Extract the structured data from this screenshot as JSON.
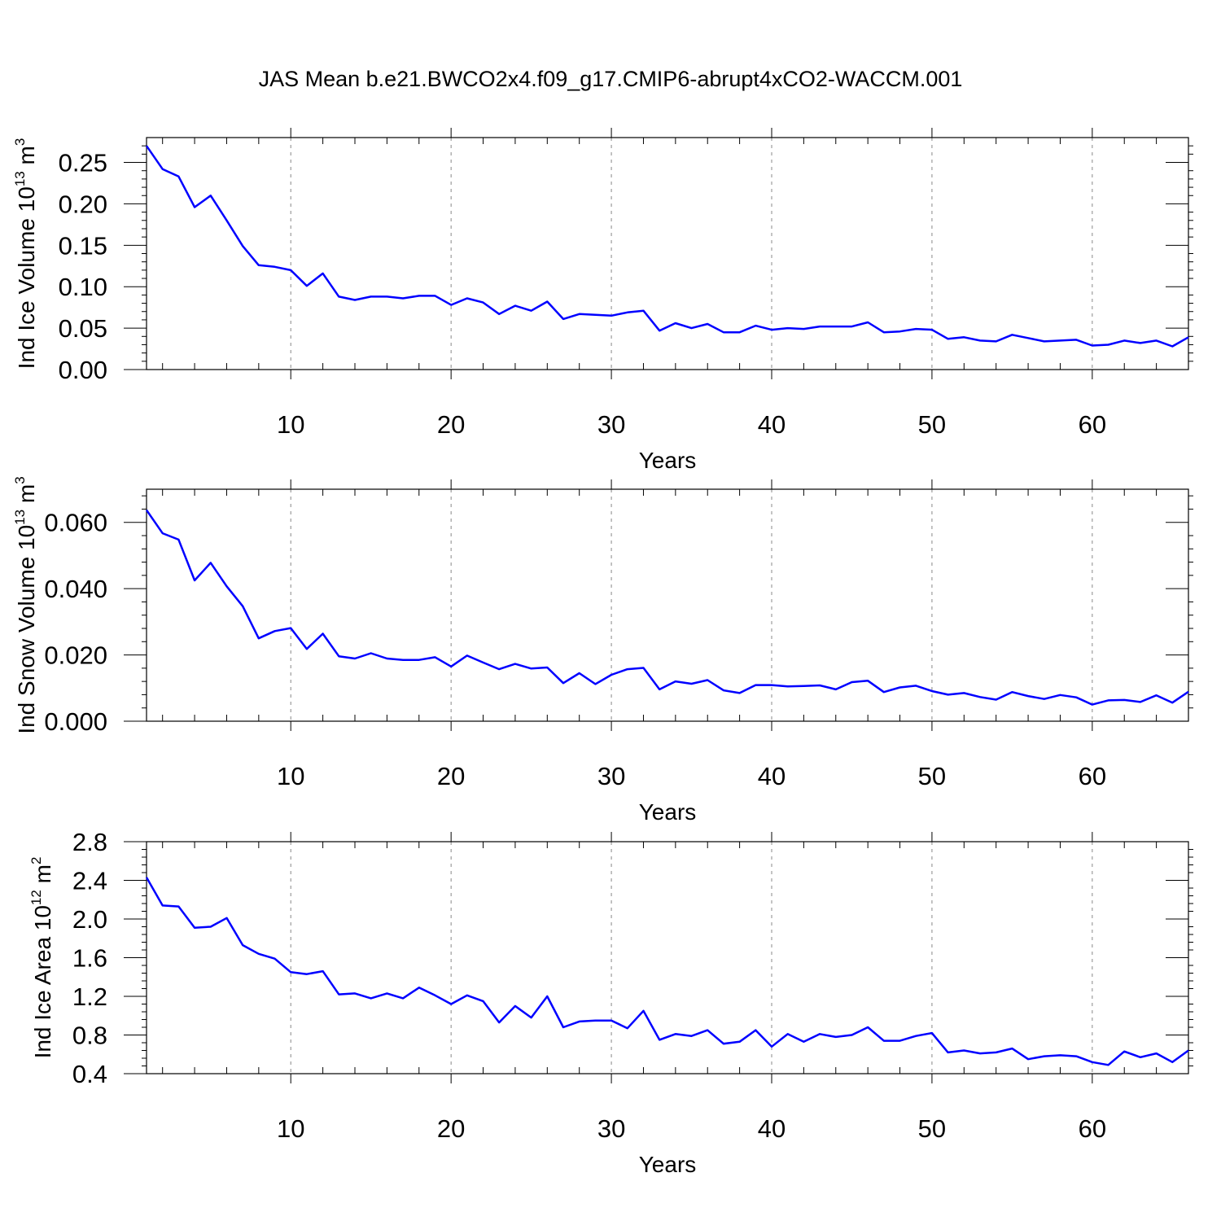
{
  "figure": {
    "title": "JAS Mean b.e21.BWCO2x4.f09_g17.CMIP6-abrupt4xCO2-WACCM.001"
  },
  "colors": {
    "series": "#0000ff",
    "axis": "#000000",
    "grid": "#888888"
  },
  "chart_data": [
    {
      "type": "line",
      "xlabel": "Years",
      "ylabel_main": "Ind Ice Volume 10",
      "ylabel_exp": "13",
      "ylabel_unit": " m",
      "ylabel_unit_exp": "3",
      "xlim": [
        1,
        66
      ],
      "ylim": [
        0,
        0.28
      ],
      "xticks": [
        10,
        20,
        30,
        40,
        50,
        60
      ],
      "xtick_labels": [
        "10",
        "20",
        "30",
        "40",
        "50",
        "60"
      ],
      "yticks": [
        0,
        0.05,
        0.1,
        0.15,
        0.2,
        0.25
      ],
      "ytick_labels": [
        "0.00",
        "0.05",
        "0.10",
        "0.15",
        "0.20",
        "0.25"
      ],
      "yminor_step": 0.01,
      "grid": "vertical dashed at major x ticks",
      "x": [
        1,
        2,
        3,
        4,
        5,
        6,
        7,
        8,
        9,
        10,
        11,
        12,
        13,
        14,
        15,
        16,
        17,
        18,
        19,
        20,
        21,
        22,
        23,
        24,
        25,
        26,
        27,
        28,
        29,
        30,
        31,
        32,
        33,
        34,
        35,
        36,
        37,
        38,
        39,
        40,
        41,
        42,
        43,
        44,
        45,
        46,
        47,
        48,
        49,
        50,
        51,
        52,
        53,
        54,
        55,
        56,
        57,
        58,
        59,
        60,
        61,
        62,
        63,
        64,
        65,
        66
      ],
      "values": [
        0.27,
        0.242,
        0.233,
        0.196,
        0.21,
        0.18,
        0.149,
        0.126,
        0.124,
        0.12,
        0.101,
        0.116,
        0.088,
        0.084,
        0.088,
        0.088,
        0.086,
        0.089,
        0.089,
        0.078,
        0.086,
        0.081,
        0.067,
        0.077,
        0.071,
        0.082,
        0.061,
        0.067,
        0.066,
        0.065,
        0.069,
        0.071,
        0.047,
        0.056,
        0.05,
        0.055,
        0.045,
        0.045,
        0.053,
        0.048,
        0.05,
        0.049,
        0.052,
        0.052,
        0.052,
        0.057,
        0.045,
        0.046,
        0.049,
        0.048,
        0.037,
        0.039,
        0.035,
        0.034,
        0.042,
        0.038,
        0.034,
        0.035,
        0.036,
        0.029,
        0.03,
        0.035,
        0.032,
        0.035,
        0.028,
        0.039
      ]
    },
    {
      "type": "line",
      "xlabel": "Years",
      "ylabel_main": "Ind Snow Volume 10",
      "ylabel_exp": "13",
      "ylabel_unit": " m",
      "ylabel_unit_exp": "3",
      "xlim": [
        1,
        66
      ],
      "ylim": [
        0,
        0.07
      ],
      "xticks": [
        10,
        20,
        30,
        40,
        50,
        60
      ],
      "xtick_labels": [
        "10",
        "20",
        "30",
        "40",
        "50",
        "60"
      ],
      "yticks": [
        0,
        0.02,
        0.04,
        0.06
      ],
      "ytick_labels": [
        "0.000",
        "0.020",
        "0.040",
        "0.060"
      ],
      "yminor_step": 0.004,
      "grid": "vertical dashed at major x ticks",
      "x": [
        1,
        2,
        3,
        4,
        5,
        6,
        7,
        8,
        9,
        10,
        11,
        12,
        13,
        14,
        15,
        16,
        17,
        18,
        19,
        20,
        21,
        22,
        23,
        24,
        25,
        26,
        27,
        28,
        29,
        30,
        31,
        32,
        33,
        34,
        35,
        36,
        37,
        38,
        39,
        40,
        41,
        42,
        43,
        44,
        45,
        46,
        47,
        48,
        49,
        50,
        51,
        52,
        53,
        54,
        55,
        56,
        57,
        58,
        59,
        60,
        61,
        62,
        63,
        64,
        65,
        66
      ],
      "values": [
        0.0637,
        0.0567,
        0.0548,
        0.0425,
        0.0478,
        0.0407,
        0.0347,
        0.025,
        0.0272,
        0.0281,
        0.0218,
        0.0264,
        0.0196,
        0.0189,
        0.0205,
        0.0189,
        0.0185,
        0.0185,
        0.0193,
        0.0165,
        0.0198,
        0.0177,
        0.0157,
        0.0173,
        0.0159,
        0.0162,
        0.0115,
        0.0145,
        0.0112,
        0.014,
        0.0157,
        0.0161,
        0.0096,
        0.012,
        0.0113,
        0.0124,
        0.0093,
        0.0085,
        0.0109,
        0.0109,
        0.0105,
        0.0106,
        0.0108,
        0.0096,
        0.0118,
        0.0122,
        0.0088,
        0.0102,
        0.0107,
        0.0091,
        0.008,
        0.0085,
        0.0073,
        0.0065,
        0.0088,
        0.0076,
        0.0067,
        0.0079,
        0.0072,
        0.005,
        0.0063,
        0.0064,
        0.0058,
        0.0078,
        0.0056,
        0.0089
      ]
    },
    {
      "type": "line",
      "xlabel": "Years",
      "ylabel_main": "Ind Ice Area 10",
      "ylabel_exp": "12",
      "ylabel_unit": " m",
      "ylabel_unit_exp": "2",
      "xlim": [
        1,
        66
      ],
      "ylim": [
        0.4,
        2.8
      ],
      "xticks": [
        10,
        20,
        30,
        40,
        50,
        60
      ],
      "xtick_labels": [
        "10",
        "20",
        "30",
        "40",
        "50",
        "60"
      ],
      "yticks": [
        0.4,
        0.8,
        1.2,
        1.6,
        2.0,
        2.4,
        2.8
      ],
      "ytick_labels": [
        "0.4",
        "0.8",
        "1.2",
        "1.6",
        "2.0",
        "2.4",
        "2.8"
      ],
      "yminor_step": 0.08,
      "grid": "vertical dashed at major x ticks",
      "x": [
        1,
        2,
        3,
        4,
        5,
        6,
        7,
        8,
        9,
        10,
        11,
        12,
        13,
        14,
        15,
        16,
        17,
        18,
        19,
        20,
        21,
        22,
        23,
        24,
        25,
        26,
        27,
        28,
        29,
        30,
        31,
        32,
        33,
        34,
        35,
        36,
        37,
        38,
        39,
        40,
        41,
        42,
        43,
        44,
        45,
        46,
        47,
        48,
        49,
        50,
        51,
        52,
        53,
        54,
        55,
        56,
        57,
        58,
        59,
        60,
        61,
        62,
        63,
        64,
        65,
        66
      ],
      "values": [
        2.43,
        2.14,
        2.13,
        1.91,
        1.92,
        2.01,
        1.73,
        1.64,
        1.59,
        1.45,
        1.43,
        1.46,
        1.22,
        1.23,
        1.18,
        1.23,
        1.18,
        1.29,
        1.21,
        1.12,
        1.21,
        1.15,
        0.93,
        1.1,
        0.98,
        1.2,
        0.88,
        0.94,
        0.95,
        0.95,
        0.87,
        1.05,
        0.75,
        0.81,
        0.79,
        0.85,
        0.71,
        0.73,
        0.85,
        0.68,
        0.81,
        0.73,
        0.81,
        0.78,
        0.8,
        0.88,
        0.74,
        0.74,
        0.79,
        0.82,
        0.62,
        0.64,
        0.61,
        0.62,
        0.66,
        0.55,
        0.58,
        0.59,
        0.58,
        0.52,
        0.49,
        0.63,
        0.57,
        0.61,
        0.52,
        0.64
      ]
    }
  ]
}
